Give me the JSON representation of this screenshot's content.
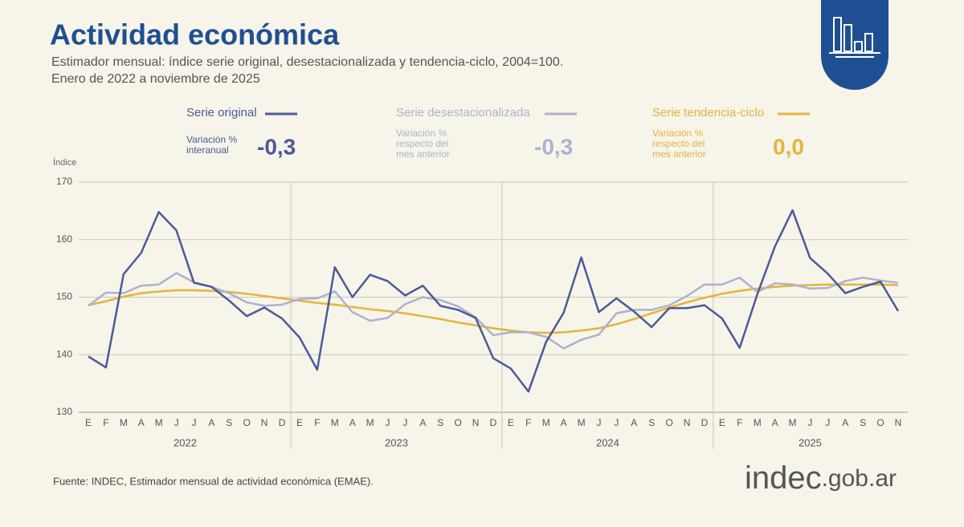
{
  "chart_data": {
    "type": "line",
    "title": "Actividad económica",
    "subtitle": [
      "Estimador mensual: índice serie original, desestacionalizada y tendencia-ciclo, 2004=100.",
      "Enero de 2022 a noviembre de 2025"
    ],
    "y_label": "Índice",
    "categories": [
      "E",
      "F",
      "M",
      "A",
      "M",
      "J",
      "J",
      "A",
      "S",
      "O",
      "N",
      "D",
      "E",
      "F",
      "M",
      "A",
      "M",
      "J",
      "J",
      "A",
      "S",
      "O",
      "N",
      "D",
      "E",
      "F",
      "M",
      "A",
      "M",
      "J",
      "J",
      "A",
      "S",
      "O",
      "N",
      "D",
      "E",
      "F",
      "M",
      "A",
      "M",
      "J",
      "J",
      "A",
      "S",
      "O",
      "N"
    ],
    "groups": [
      "2022",
      "2023",
      "2024",
      "2025"
    ],
    "ylim": [
      130,
      170
    ],
    "yticks": [
      130,
      140,
      150,
      160,
      170
    ],
    "grid": true,
    "series": [
      {
        "name": "Serie original",
        "color": "#4a5a9a",
        "stat_text": [
          "Variación %",
          "interanual"
        ],
        "stat": {
          "value": -0.3,
          "label": "-0,3"
        },
        "values": [
          139.7,
          137.8,
          154.0,
          157.7,
          164.8,
          161.6,
          152.5,
          151.8,
          149.4,
          146.7,
          148.2,
          146.3,
          143.0,
          137.4,
          155.2,
          150.0,
          153.9,
          152.8,
          150.3,
          152.0,
          148.5,
          147.8,
          146.4,
          139.4,
          137.6,
          133.6,
          142.2,
          147.3,
          156.9,
          147.4,
          149.8,
          147.5,
          144.8,
          148.1,
          148.1,
          148.6,
          146.3,
          141.2,
          150.5,
          158.8,
          165.1,
          156.8,
          154.1,
          150.7,
          151.8,
          152.7,
          147.6
        ]
      },
      {
        "name": "Serie desestacionalizada",
        "color": "#aeb1cf",
        "stat_text": [
          "Variación %",
          "respecto del",
          "mes anterior"
        ],
        "stat": {
          "value": -0.3,
          "label": "-0,3"
        },
        "values": [
          148.5,
          150.8,
          150.7,
          152.0,
          152.2,
          154.2,
          152.6,
          151.8,
          150.7,
          149.1,
          148.5,
          148.7,
          149.7,
          149.8,
          151.0,
          147.4,
          145.9,
          146.4,
          148.8,
          150.0,
          149.5,
          148.4,
          146.5,
          143.4,
          143.9,
          143.9,
          143.1,
          141.1,
          142.6,
          143.5,
          147.2,
          147.8,
          147.8,
          148.6,
          150.2,
          152.2,
          152.2,
          153.4,
          150.9,
          152.4,
          152.2,
          151.5,
          151.6,
          152.8,
          153.4,
          152.9,
          152.5
        ]
      },
      {
        "name": "Serie tendencia-ciclo",
        "color": "#e5b43a",
        "stat_text": [
          "Variación %",
          "respecto del",
          "mes anterior"
        ],
        "stat": {
          "value": 0.0,
          "label": "0,0"
        },
        "values": [
          148.6,
          149.3,
          150.1,
          150.7,
          151.0,
          151.2,
          151.2,
          151.1,
          150.9,
          150.6,
          150.2,
          149.8,
          149.4,
          149.0,
          148.7,
          148.3,
          147.9,
          147.6,
          147.2,
          146.7,
          146.2,
          145.6,
          145.1,
          144.6,
          144.2,
          143.9,
          143.8,
          143.9,
          144.2,
          144.6,
          145.3,
          146.2,
          147.2,
          148.2,
          149.1,
          149.9,
          150.6,
          151.1,
          151.5,
          151.8,
          152.0,
          152.1,
          152.2,
          152.2,
          152.2,
          152.2,
          152.1
        ]
      }
    ],
    "source": "Fuente: INDEC, Estimador mensual de actividad económica (EMAE).",
    "brand": [
      "indec",
      ".gob.ar"
    ]
  }
}
